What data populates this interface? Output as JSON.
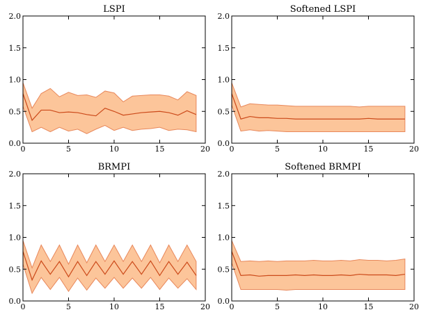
{
  "colors": {
    "band_fill": "#fcc59a",
    "band_edge": "#e8875a",
    "mean_line": "#cc4a1a"
  },
  "chart_data": [
    {
      "type": "line",
      "title": "LSPI",
      "xlim": [
        0,
        20
      ],
      "ylim": [
        0,
        2
      ],
      "xticks": [
        "0",
        "5",
        "10",
        "15",
        "20"
      ],
      "yticks": [
        "0.0",
        "0.5",
        "1.0",
        "1.5",
        "2.0"
      ],
      "x": [
        0,
        1,
        2,
        3,
        4,
        5,
        6,
        7,
        8,
        9,
        10,
        11,
        12,
        13,
        14,
        15,
        16,
        17,
        18,
        19
      ],
      "series": [
        {
          "mean": [
            0.78,
            0.36,
            0.52,
            0.52,
            0.48,
            0.49,
            0.48,
            0.45,
            0.43,
            0.55,
            0.5,
            0.44,
            0.46,
            0.48,
            0.49,
            0.5,
            0.48,
            0.44,
            0.51,
            0.45
          ],
          "upper": [
            0.95,
            0.55,
            0.78,
            0.86,
            0.73,
            0.8,
            0.75,
            0.76,
            0.72,
            0.82,
            0.79,
            0.65,
            0.74,
            0.75,
            0.76,
            0.76,
            0.74,
            0.68,
            0.81,
            0.75
          ],
          "lower": [
            0.58,
            0.18,
            0.25,
            0.18,
            0.25,
            0.19,
            0.22,
            0.15,
            0.22,
            0.28,
            0.2,
            0.25,
            0.2,
            0.22,
            0.23,
            0.25,
            0.2,
            0.22,
            0.21,
            0.18
          ]
        }
      ]
    },
    {
      "type": "line",
      "title": "Softened LSPI",
      "xlim": [
        0,
        20
      ],
      "ylim": [
        0,
        2
      ],
      "xticks": [
        "0",
        "5",
        "10",
        "15",
        "20"
      ],
      "yticks": [
        "0.0",
        "0.5",
        "1.0",
        "1.5",
        "2.0"
      ],
      "x": [
        0,
        1,
        2,
        3,
        4,
        5,
        6,
        7,
        8,
        9,
        10,
        11,
        12,
        13,
        14,
        15,
        16,
        17,
        18,
        19
      ],
      "series": [
        {
          "mean": [
            0.78,
            0.38,
            0.42,
            0.4,
            0.4,
            0.39,
            0.39,
            0.38,
            0.38,
            0.38,
            0.38,
            0.38,
            0.38,
            0.38,
            0.38,
            0.39,
            0.38,
            0.38,
            0.38,
            0.38
          ],
          "upper": [
            0.95,
            0.57,
            0.62,
            0.61,
            0.6,
            0.6,
            0.59,
            0.58,
            0.58,
            0.58,
            0.58,
            0.58,
            0.58,
            0.58,
            0.57,
            0.58,
            0.58,
            0.58,
            0.58,
            0.58
          ],
          "lower": [
            0.6,
            0.19,
            0.21,
            0.19,
            0.2,
            0.19,
            0.18,
            0.18,
            0.18,
            0.18,
            0.18,
            0.18,
            0.18,
            0.18,
            0.18,
            0.18,
            0.18,
            0.18,
            0.18,
            0.18
          ]
        }
      ]
    },
    {
      "type": "line",
      "title": "BRMPI",
      "xlim": [
        0,
        20
      ],
      "ylim": [
        0,
        2
      ],
      "xticks": [
        "0",
        "5",
        "10",
        "15",
        "20"
      ],
      "yticks": [
        "0.0",
        "0.5",
        "1.0",
        "1.5",
        "2.0"
      ],
      "x": [
        0,
        1,
        2,
        3,
        4,
        5,
        6,
        7,
        8,
        9,
        10,
        11,
        12,
        13,
        14,
        15,
        16,
        17,
        18,
        19
      ],
      "series": [
        {
          "mean": [
            0.78,
            0.33,
            0.63,
            0.42,
            0.62,
            0.38,
            0.62,
            0.4,
            0.62,
            0.42,
            0.63,
            0.42,
            0.62,
            0.42,
            0.63,
            0.4,
            0.62,
            0.42,
            0.61,
            0.4
          ],
          "upper": [
            0.95,
            0.52,
            0.88,
            0.62,
            0.88,
            0.58,
            0.88,
            0.6,
            0.88,
            0.62,
            0.88,
            0.62,
            0.88,
            0.62,
            0.88,
            0.6,
            0.88,
            0.62,
            0.88,
            0.62
          ],
          "lower": [
            0.58,
            0.12,
            0.37,
            0.18,
            0.37,
            0.15,
            0.36,
            0.17,
            0.36,
            0.2,
            0.37,
            0.2,
            0.36,
            0.2,
            0.37,
            0.18,
            0.36,
            0.2,
            0.35,
            0.18
          ]
        }
      ]
    },
    {
      "type": "line",
      "title": "Softened BRMPI",
      "xlim": [
        0,
        20
      ],
      "ylim": [
        0,
        2
      ],
      "xticks": [
        "0",
        "5",
        "10",
        "15",
        "20"
      ],
      "yticks": [
        "0.0",
        "0.5",
        "1.0",
        "1.5",
        "2.0"
      ],
      "x": [
        0,
        1,
        2,
        3,
        4,
        5,
        6,
        7,
        8,
        9,
        10,
        11,
        12,
        13,
        14,
        15,
        16,
        17,
        18,
        19
      ],
      "series": [
        {
          "mean": [
            0.78,
            0.4,
            0.41,
            0.39,
            0.4,
            0.4,
            0.4,
            0.41,
            0.4,
            0.41,
            0.4,
            0.4,
            0.41,
            0.4,
            0.42,
            0.41,
            0.41,
            0.41,
            0.4,
            0.42
          ],
          "upper": [
            0.95,
            0.62,
            0.63,
            0.62,
            0.63,
            0.62,
            0.63,
            0.63,
            0.63,
            0.64,
            0.63,
            0.63,
            0.64,
            0.63,
            0.65,
            0.64,
            0.64,
            0.63,
            0.64,
            0.66
          ],
          "lower": [
            0.6,
            0.18,
            0.18,
            0.18,
            0.18,
            0.18,
            0.17,
            0.18,
            0.18,
            0.18,
            0.18,
            0.18,
            0.18,
            0.18,
            0.18,
            0.18,
            0.18,
            0.18,
            0.18,
            0.18
          ]
        }
      ]
    }
  ]
}
